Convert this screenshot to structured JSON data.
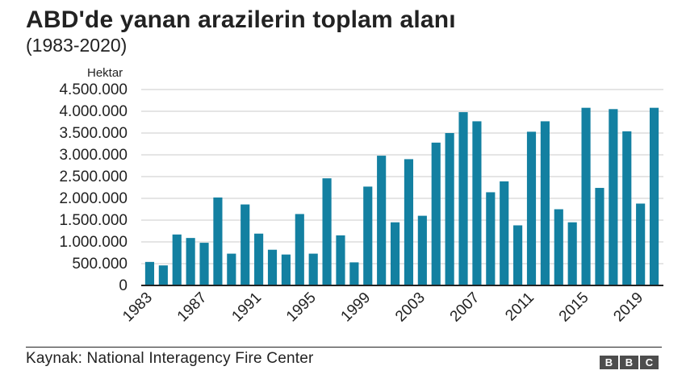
{
  "header": {
    "title": "ABD'de yanan arazilerin toplam alanı",
    "subtitle": "(1983-2020)"
  },
  "footer": {
    "source": "Kaynak: National Interagency Fire Center",
    "logo_letters": [
      "B",
      "B",
      "C"
    ]
  },
  "colors": {
    "bar": "#1380a1",
    "grid": "#cbcbcb",
    "axis": "#222222",
    "text": "#222222"
  },
  "chart_data": {
    "type": "bar",
    "title": "ABD'de yanan arazilerin toplam alanı",
    "subtitle": "(1983-2020)",
    "ylabel": "Hektar",
    "xlabel": "",
    "ylim": [
      0,
      4500000
    ],
    "yticks": [
      0,
      500000,
      1000000,
      1500000,
      2000000,
      2500000,
      3000000,
      3500000,
      4000000,
      4500000
    ],
    "ytick_labels": [
      "0",
      "500.000",
      "1.000.000",
      "1.500.000",
      "2.000.000",
      "2.500.000",
      "3.000.000",
      "3.500.000",
      "4.000.000",
      "4.500.000"
    ],
    "xtick_labels": [
      "1983",
      "1987",
      "1991",
      "1995",
      "1999",
      "2003",
      "2007",
      "2011",
      "2015",
      "2019"
    ],
    "grid": true,
    "categories": [
      "1983",
      "1984",
      "1985",
      "1986",
      "1987",
      "1988",
      "1989",
      "1990",
      "1991",
      "1992",
      "1993",
      "1994",
      "1995",
      "1996",
      "1997",
      "1998",
      "1999",
      "2000",
      "2001",
      "2002",
      "2003",
      "2004",
      "2005",
      "2006",
      "2007",
      "2008",
      "2009",
      "2010",
      "2011",
      "2012",
      "2013",
      "2014",
      "2015",
      "2016",
      "2017",
      "2018",
      "2019",
      "2020"
    ],
    "values": [
      540000,
      460000,
      1170000,
      1090000,
      980000,
      2020000,
      730000,
      1860000,
      1190000,
      820000,
      710000,
      1640000,
      730000,
      2460000,
      1150000,
      530000,
      2270000,
      2980000,
      1450000,
      2900000,
      1600000,
      3280000,
      3500000,
      3980000,
      3770000,
      2140000,
      2390000,
      1380000,
      3530000,
      3770000,
      1750000,
      1450000,
      4080000,
      2240000,
      4050000,
      3540000,
      1880000,
      4080000
    ]
  }
}
